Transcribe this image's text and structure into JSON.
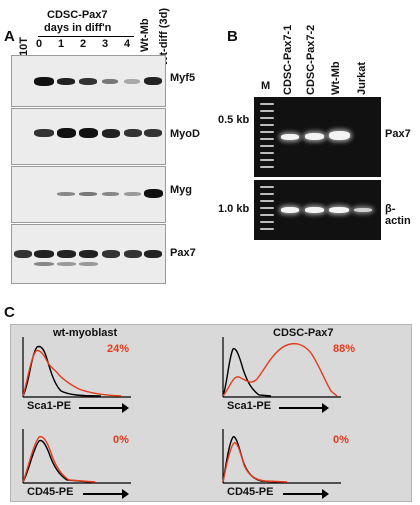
{
  "panels": {
    "a": {
      "label": "A"
    },
    "b": {
      "label": "B"
    },
    "c": {
      "label": "C"
    }
  },
  "panel_a": {
    "lane_10t": "10T",
    "group_title_line1": "CDSC-Pax7",
    "group_title_line2": "days in diff'n",
    "days": [
      "0",
      "1",
      "2",
      "3",
      "4"
    ],
    "lane_wt_mb": "Wt-Mb",
    "lane_wt_diff": "Wt-diff (3d)",
    "blots": [
      "Myf5",
      "MyoD",
      "Myg",
      "Pax7"
    ]
  },
  "panel_b": {
    "lane_m": "M",
    "lanes": [
      "CDSC-Pax7-1",
      "CDSC-Pax7-2",
      "Wt-Mb",
      "Jurkat"
    ],
    "size_top": "0.5 kb",
    "size_bottom": "1.0 kb",
    "gene_top": "Pax7",
    "gene_bottom": "β-actin"
  },
  "panel_c": {
    "col1_title": "wt-myoblast",
    "col2_title": "CDSC-Pax7",
    "pct_sca_wt": "24%",
    "pct_sca_cdsc": "88%",
    "pct_cd45_wt": "0%",
    "pct_cd45_cdsc": "0%",
    "axis_sca": "Sca1-PE",
    "axis_cd45": "CD45-PE",
    "sample_color": "#e53a1c",
    "control_color": "#000000"
  }
}
